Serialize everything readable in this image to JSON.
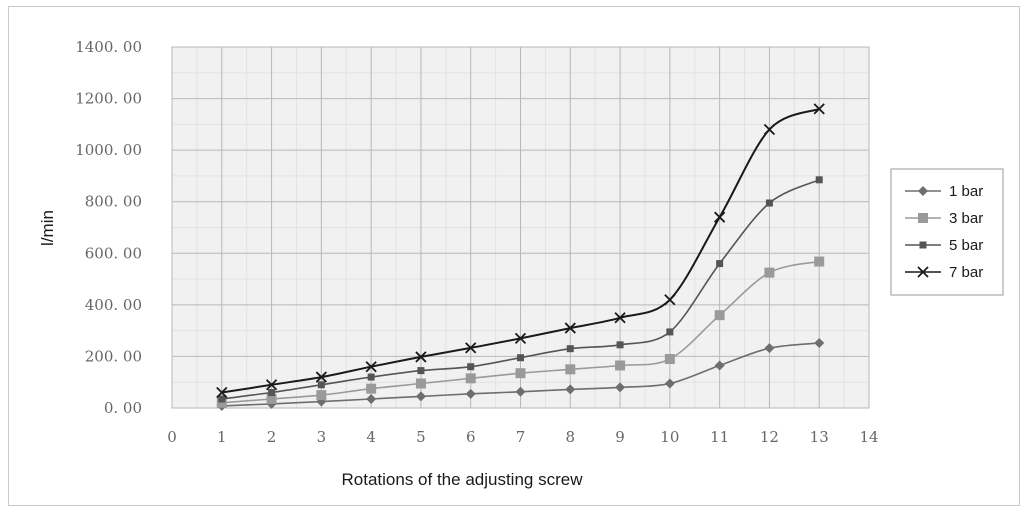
{
  "chart_data": {
    "type": "line",
    "title": "",
    "xlabel": "Rotations of the adjusting screw",
    "ylabel": "l/min",
    "x": [
      1,
      2,
      3,
      4,
      5,
      6,
      7,
      8,
      9,
      10,
      11,
      12,
      13
    ],
    "xlim": [
      0,
      14
    ],
    "x_ticks": [
      0,
      1,
      2,
      3,
      4,
      5,
      6,
      7,
      8,
      9,
      10,
      11,
      12,
      13,
      14
    ],
    "ylim": [
      0,
      1400
    ],
    "y_ticks": [
      0,
      200,
      400,
      600,
      800,
      1000,
      1200,
      1400
    ],
    "y_tick_labels": [
      "0. 00",
      "200. 00",
      "400. 00",
      "600. 00",
      "800. 00",
      "1000. 00",
      "1200. 00",
      "1400. 00"
    ],
    "grid": true,
    "smooth": true,
    "legend_position": "right",
    "series": [
      {
        "name": "1 bar",
        "marker": "diamond",
        "color": "#6e6e6e",
        "values": [
          8,
          16,
          25,
          35,
          45,
          55,
          63,
          72,
          80,
          95,
          165,
          232,
          252
        ]
      },
      {
        "name": "3 bar",
        "marker": "square",
        "color": "#9a9a9a",
        "values": [
          20,
          35,
          50,
          75,
          95,
          115,
          135,
          150,
          165,
          190,
          360,
          525,
          568
        ]
      },
      {
        "name": "5 bar",
        "marker": "small-square",
        "color": "#555555",
        "values": [
          35,
          60,
          90,
          120,
          145,
          160,
          195,
          230,
          245,
          295,
          560,
          795,
          885
        ]
      },
      {
        "name": "7 bar",
        "marker": "x",
        "color": "#1a1a1a",
        "values": [
          60,
          90,
          120,
          160,
          198,
          233,
          270,
          310,
          350,
          420,
          740,
          1080,
          1160
        ]
      }
    ]
  }
}
